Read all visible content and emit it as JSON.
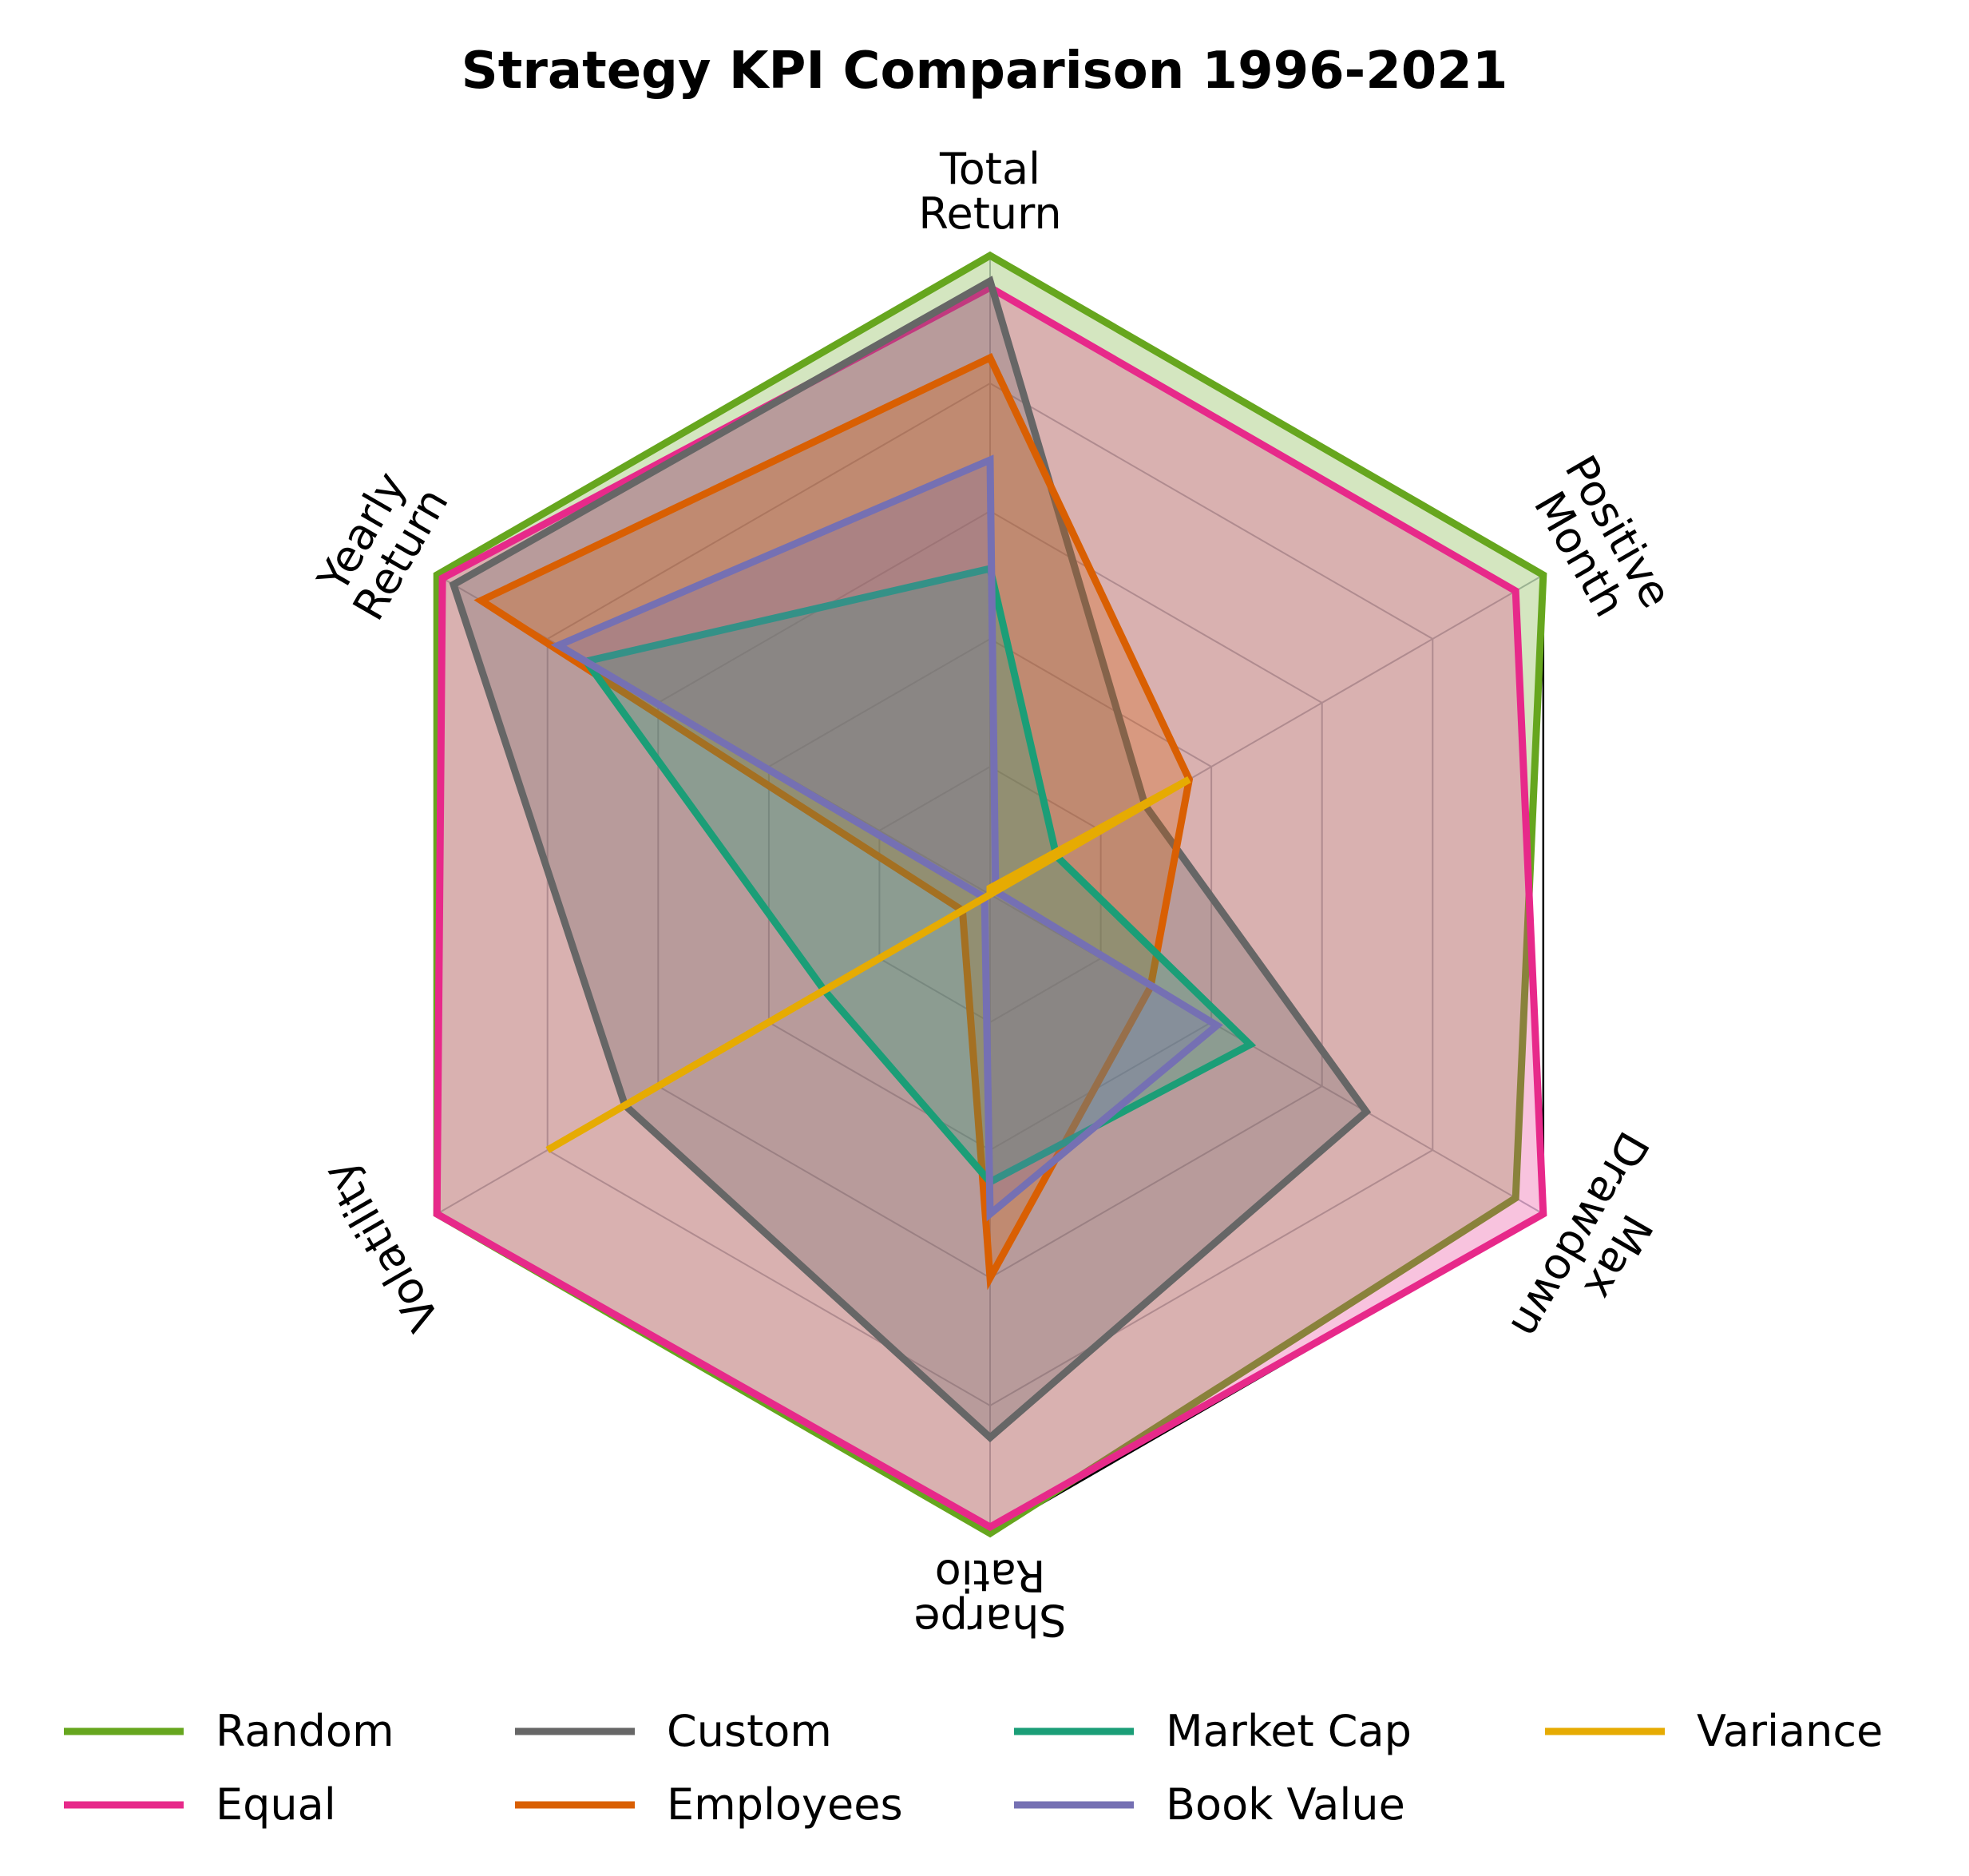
{
  "chart_data": {
    "type": "radar",
    "title": "Strategy KPI Comparison 1996-2021",
    "axes": [
      [
        "Total",
        "Return"
      ],
      [
        "Positive",
        "Month"
      ],
      [
        "Max",
        "Drawdown"
      ],
      [
        "Sharpe",
        "Ratio"
      ],
      [
        "Volatility"
      ],
      [
        "Yearly",
        "Return"
      ]
    ],
    "rmax": 1.0,
    "grid_levels": [
      0.2,
      0.4,
      0.6,
      0.8,
      1.0
    ],
    "grid": true,
    "legend_position": "bottom",
    "series": [
      {
        "name": "Random",
        "color": "#66a61e",
        "fill": true,
        "fill_opacity": 0.28,
        "values": [
          1.0,
          1.0,
          0.95,
          1.0,
          1.0,
          1.0
        ]
      },
      {
        "name": "Equal",
        "color": "#e7298a",
        "fill": true,
        "fill_opacity": 0.28,
        "values": [
          0.95,
          0.95,
          1.0,
          0.99,
          1.0,
          0.99
        ]
      },
      {
        "name": "Custom",
        "color": "#666666",
        "fill": true,
        "fill_opacity": 0.28,
        "values": [
          0.96,
          0.28,
          0.68,
          0.85,
          0.66,
          0.97
        ]
      },
      {
        "name": "Employees",
        "color": "#d95f02",
        "fill": true,
        "fill_opacity": 0.28,
        "values": [
          0.84,
          0.36,
          0.29,
          0.6,
          0.05,
          0.92
        ]
      },
      {
        "name": "Market Cap",
        "color": "#1b9e77",
        "fill": true,
        "fill_opacity": 0.28,
        "values": [
          0.51,
          0.12,
          0.47,
          0.45,
          0.3,
          0.73
        ]
      },
      {
        "name": "Book Value",
        "color": "#7570b3",
        "fill": true,
        "fill_opacity": 0.28,
        "values": [
          0.68,
          0.01,
          0.41,
          0.5,
          0.01,
          0.78
        ]
      },
      {
        "name": "Variance",
        "color": "#e6ab02",
        "fill": false,
        "fill_opacity": 0.0,
        "values": [
          0.01,
          0.36,
          0.0,
          0.0,
          0.8,
          0.0
        ]
      }
    ]
  }
}
